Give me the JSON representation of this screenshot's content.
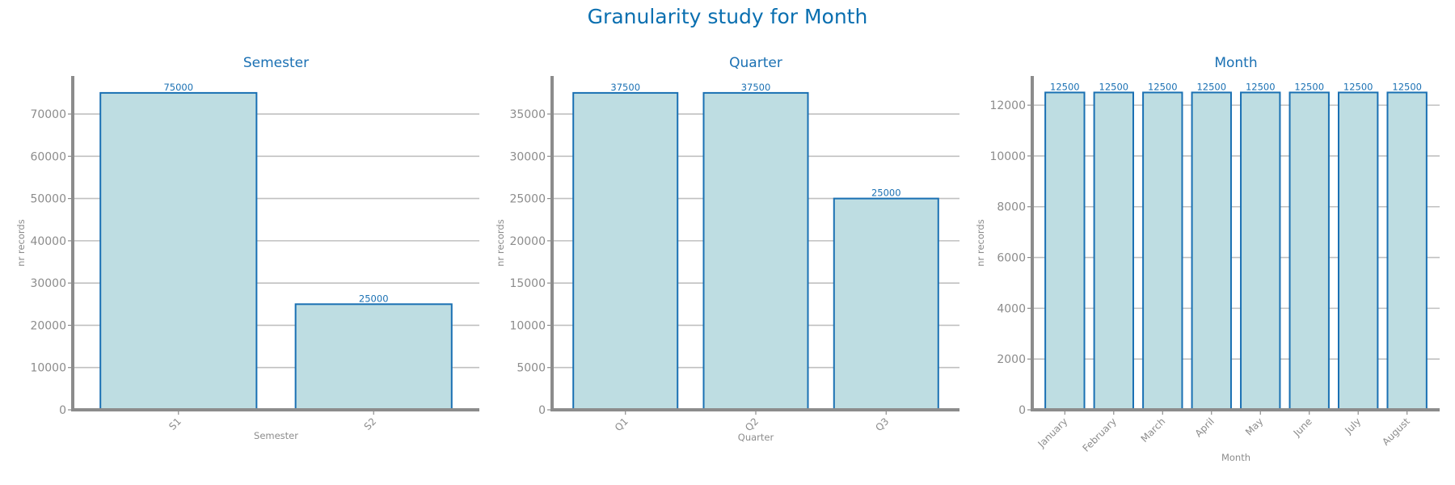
{
  "figure": {
    "title": "Granularity study for Month"
  },
  "colors": {
    "title": "#0a6fb0",
    "bar_fill": "#bedde2",
    "bar_edge": "#1a70b3",
    "axis": "#8c8c8c",
    "grid": "#c0c0c0"
  },
  "chart_data": [
    {
      "type": "bar",
      "title": "Semester",
      "xlabel": "Semester",
      "ylabel": "nr records",
      "categories": [
        "S1",
        "S2"
      ],
      "values": [
        75000,
        25000
      ],
      "ylim": [
        0,
        79000
      ],
      "yticks": [
        0,
        10000,
        20000,
        30000,
        40000,
        50000,
        60000,
        70000
      ],
      "grid": true,
      "legend": "none"
    },
    {
      "type": "bar",
      "title": "Quarter",
      "xlabel": "Quarter",
      "ylabel": "nr records",
      "categories": [
        "Q1",
        "Q2",
        "Q3"
      ],
      "values": [
        37500,
        37500,
        25000
      ],
      "ylim": [
        0,
        39500
      ],
      "yticks": [
        0,
        5000,
        10000,
        15000,
        20000,
        25000,
        30000,
        35000
      ],
      "grid": true,
      "legend": "none"
    },
    {
      "type": "bar",
      "title": "Month",
      "xlabel": "Month",
      "ylabel": "nr records",
      "categories": [
        "January",
        "February",
        "March",
        "April",
        "May",
        "June",
        "July",
        "August"
      ],
      "values": [
        12500,
        12500,
        12500,
        12500,
        12500,
        12500,
        12500,
        12500
      ],
      "ylim": [
        0,
        13150
      ],
      "yticks": [
        0,
        2000,
        4000,
        6000,
        8000,
        10000,
        12000
      ],
      "grid": true,
      "legend": "none"
    }
  ]
}
